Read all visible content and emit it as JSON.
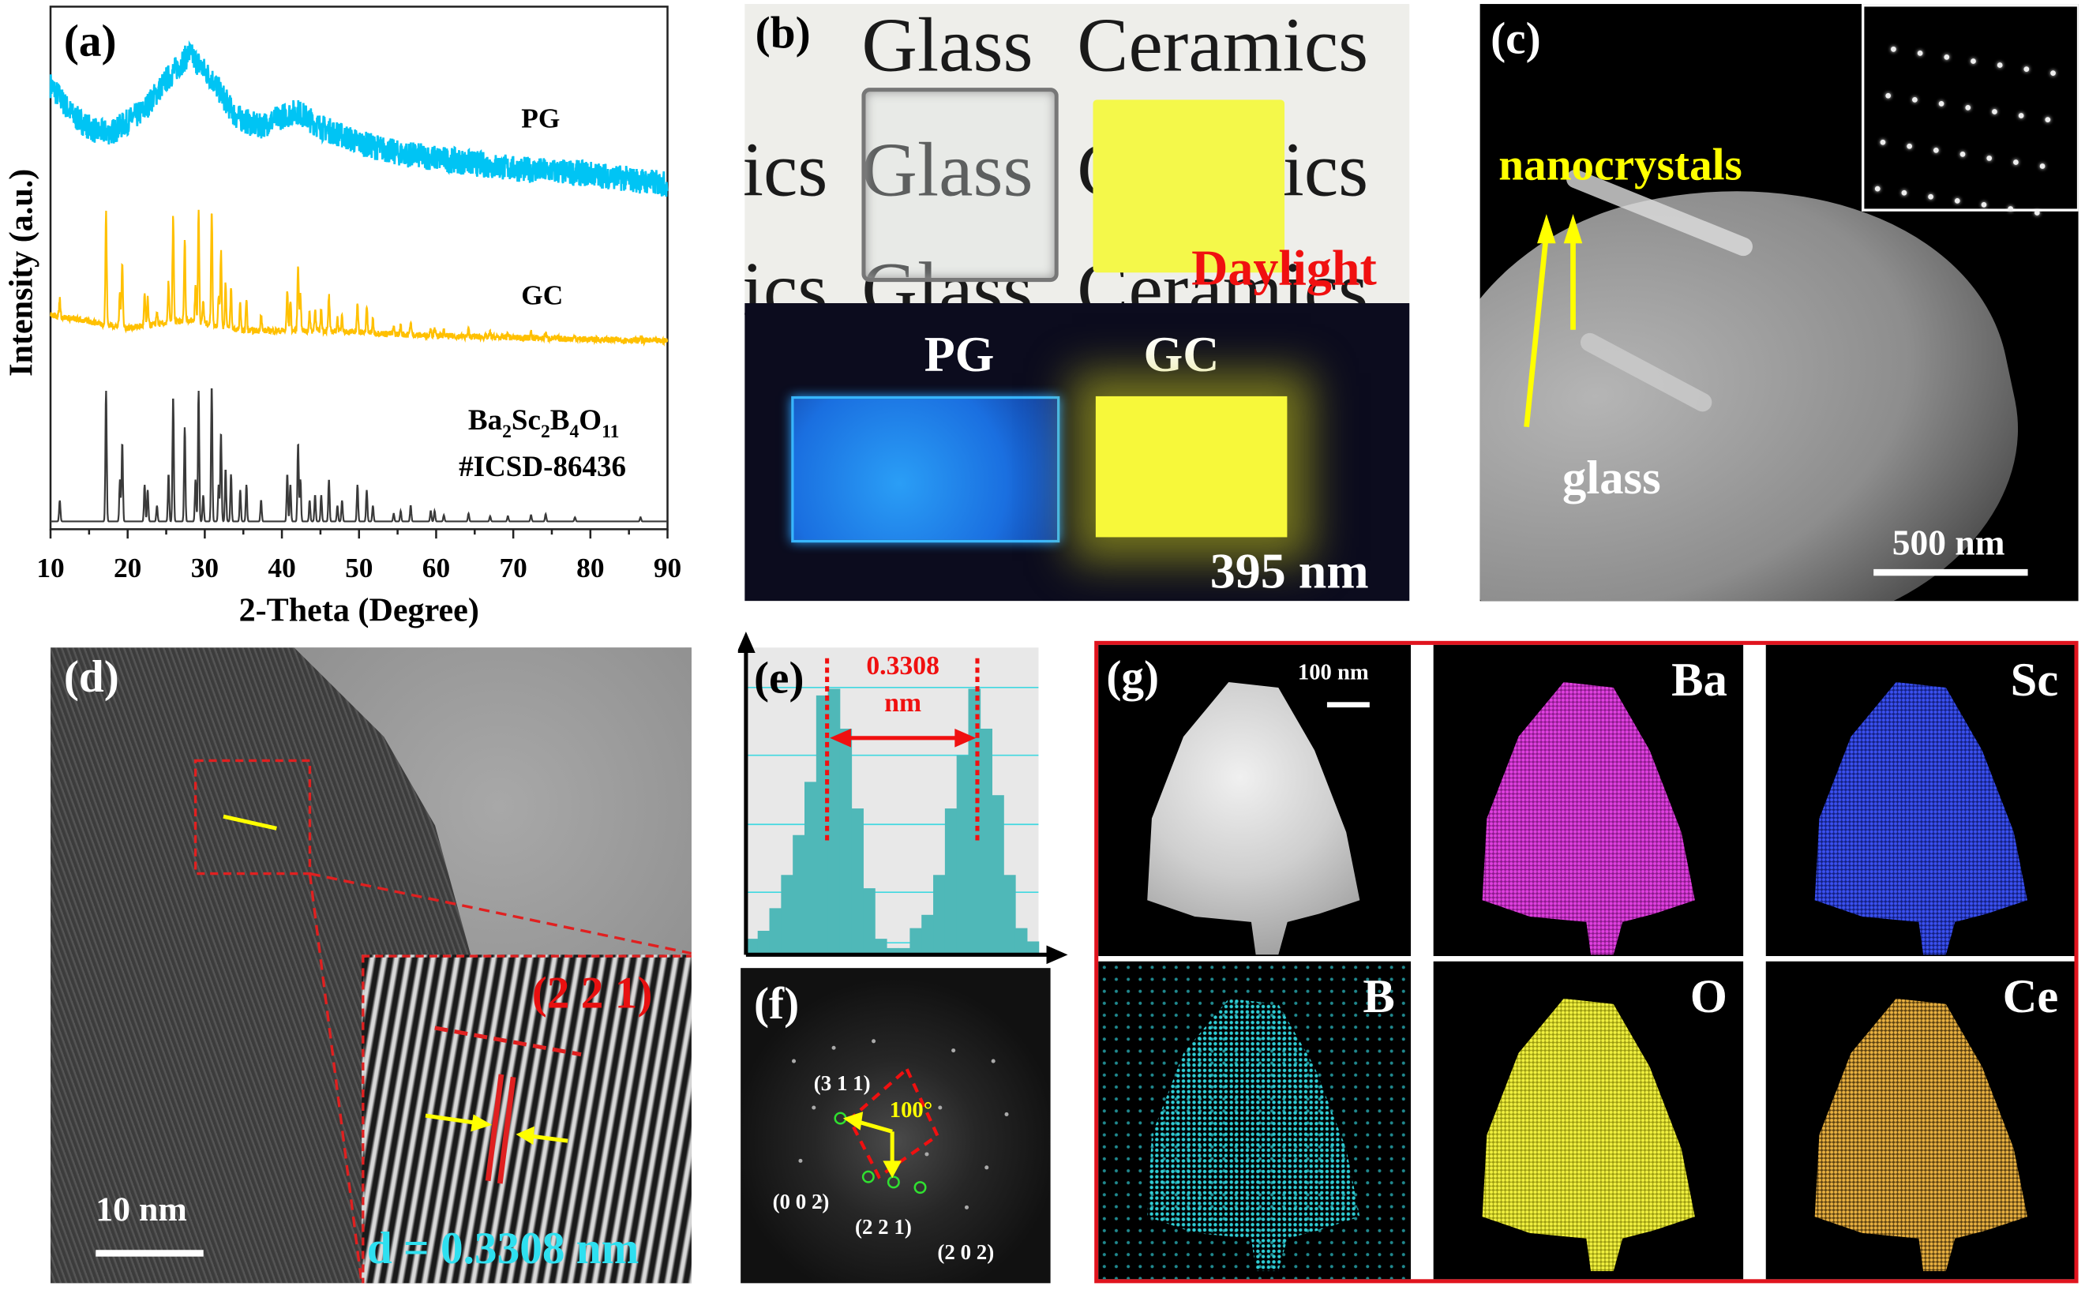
{
  "panels": {
    "a": {
      "label": "(a)"
    },
    "b": {
      "label": "(b)",
      "bg_rows": [
        [
          "ics",
          "Glass",
          "Ceramics"
        ],
        [
          "ics",
          "Glass",
          "Ceramics"
        ]
      ],
      "top_words": [
        "Glass",
        "Ceramics"
      ],
      "daylight": "Daylight",
      "pg": "PG",
      "gc": "GC",
      "wavelength": "395 nm"
    },
    "c": {
      "label": "(c)",
      "nanocrystals": "nanocrystals",
      "glass": "glass",
      "scale": "500 nm"
    },
    "d": {
      "label": "(d)",
      "plane": "(2 2 1)",
      "dspacing": "d = 0.3308 nm",
      "scale": "10 nm"
    },
    "e": {
      "label": "(e)",
      "distance_value": "0.3308",
      "distance_unit": "nm"
    },
    "f": {
      "label": "(f)",
      "angle": "100°",
      "spots": [
        "(3 1 1)",
        "(0 0 2)",
        "(2 2 1)",
        "(2 0 2)"
      ]
    },
    "g": {
      "label": "(g)",
      "scale": "100 nm",
      "elements": [
        "Ba",
        "Sc",
        "B",
        "O",
        "Ce"
      ]
    }
  },
  "colors": {
    "pg": "#00c4f4",
    "gc": "#ffc000",
    "ref": "#3a3a3a",
    "ba": "#c020c0",
    "sc": "#2035c8",
    "b": "#20c0c8",
    "o": "#d8d820",
    "ce": "#d8a030"
  },
  "chart_data": {
    "type": "line",
    "title": "",
    "xlabel": "2-Theta (Degree)",
    "ylabel": "Intensity (a.u.)",
    "xlim": [
      10,
      90
    ],
    "ylim": [
      0,
      1
    ],
    "xticks": [
      "10",
      "20",
      "30",
      "40",
      "50",
      "60",
      "70",
      "80",
      "90"
    ],
    "grid": false,
    "series": [
      {
        "name": "PG",
        "label": "PG",
        "type": "broad",
        "points": [
          [
            10,
            0.85
          ],
          [
            13,
            0.79
          ],
          [
            16,
            0.76
          ],
          [
            18,
            0.76
          ],
          [
            22,
            0.8
          ],
          [
            25,
            0.86
          ],
          [
            28,
            0.91
          ],
          [
            31,
            0.86
          ],
          [
            34,
            0.79
          ],
          [
            37,
            0.77
          ],
          [
            40,
            0.79
          ],
          [
            42,
            0.8
          ],
          [
            45,
            0.77
          ],
          [
            50,
            0.74
          ],
          [
            55,
            0.72
          ],
          [
            60,
            0.71
          ],
          [
            70,
            0.69
          ],
          [
            80,
            0.68
          ],
          [
            90,
            0.66
          ]
        ]
      },
      {
        "name": "GC",
        "label": "GC",
        "type": "peaks",
        "baseline": [
          [
            10,
            0.41
          ],
          [
            20,
            0.385
          ],
          [
            28,
            0.4
          ],
          [
            35,
            0.38
          ],
          [
            45,
            0.38
          ],
          [
            60,
            0.37
          ],
          [
            90,
            0.36
          ]
        ],
        "scale": 0.85
      },
      {
        "name": "Ba2Sc2B4O11 #ICSD-86436",
        "label_main": "Ba",
        "label_sub": [
          "2",
          "Sc",
          "2",
          "B",
          "4",
          "O",
          "11"
        ],
        "label_ref": "#ICSD-86436",
        "type": "peaks",
        "baseline": [
          [
            10,
            0.015
          ],
          [
            90,
            0.015
          ]
        ],
        "scale": 1.0
      }
    ],
    "peaks": [
      [
        11.2,
        0.04
      ],
      [
        17.2,
        0.25
      ],
      [
        19.0,
        0.08
      ],
      [
        19.3,
        0.15
      ],
      [
        22.2,
        0.07
      ],
      [
        22.6,
        0.06
      ],
      [
        23.8,
        0.03
      ],
      [
        25.3,
        0.09
      ],
      [
        25.9,
        0.24
      ],
      [
        27.4,
        0.18
      ],
      [
        28.8,
        0.08
      ],
      [
        29.2,
        0.25
      ],
      [
        29.8,
        0.05
      ],
      [
        30.9,
        0.26
      ],
      [
        31.8,
        0.07
      ],
      [
        32.1,
        0.17
      ],
      [
        32.7,
        0.1
      ],
      [
        33.4,
        0.09
      ],
      [
        34.6,
        0.06
      ],
      [
        35.4,
        0.07
      ],
      [
        37.3,
        0.04
      ],
      [
        40.7,
        0.09
      ],
      [
        41.1,
        0.07
      ],
      [
        42.1,
        0.15
      ],
      [
        42.4,
        0.08
      ],
      [
        43.6,
        0.04
      ],
      [
        44.3,
        0.05
      ],
      [
        45.1,
        0.05
      ],
      [
        46.1,
        0.08
      ],
      [
        47.2,
        0.03
      ],
      [
        47.8,
        0.04
      ],
      [
        49.8,
        0.07
      ],
      [
        51.0,
        0.06
      ],
      [
        51.8,
        0.03
      ],
      [
        54.5,
        0.015
      ],
      [
        55.4,
        0.02
      ],
      [
        56.7,
        0.03
      ],
      [
        59.3,
        0.02
      ],
      [
        59.8,
        0.02
      ],
      [
        61,
        0.012
      ],
      [
        64.2,
        0.015
      ],
      [
        67,
        0.01
      ],
      [
        69.3,
        0.01
      ],
      [
        72.3,
        0.012
      ],
      [
        74.2,
        0.014
      ],
      [
        78,
        0.008
      ],
      [
        86.5,
        0.008
      ]
    ]
  }
}
